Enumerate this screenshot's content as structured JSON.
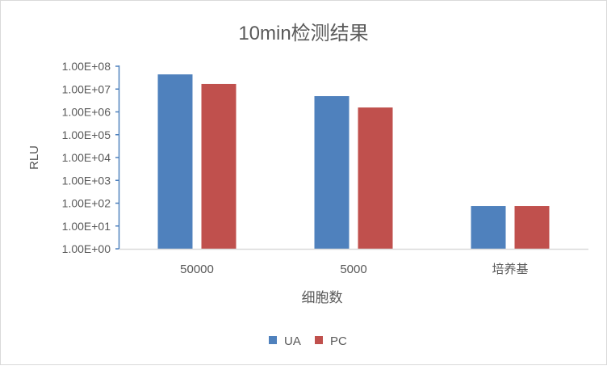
{
  "chart_data": {
    "type": "bar",
    "title": "10min检测结果",
    "xlabel": "细胞数",
    "ylabel": "RLU",
    "yscale": "log",
    "ylim": [
      1,
      100000000
    ],
    "yticks": [
      "1.00E+00",
      "1.00E+01",
      "1.00E+02",
      "1.00E+03",
      "1.00E+04",
      "1.00E+05",
      "1.00E+06",
      "1.00E+07",
      "1.00E+08"
    ],
    "categories": [
      "50000",
      "5000",
      "培养基"
    ],
    "series": [
      {
        "name": "UA",
        "color": "#4f81bd",
        "values": [
          44000000,
          4900000,
          75
        ]
      },
      {
        "name": "PC",
        "color": "#c0504d",
        "values": [
          16700000,
          1560000,
          75
        ]
      }
    ],
    "legend": "bottom",
    "grid": false
  }
}
